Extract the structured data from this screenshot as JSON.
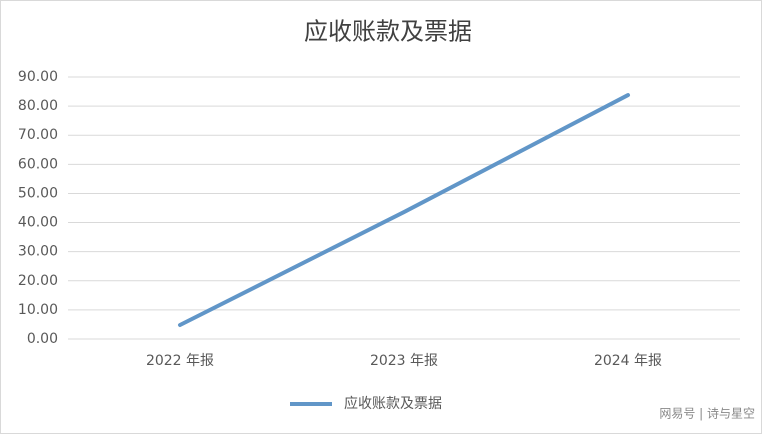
{
  "chart_data": {
    "type": "line",
    "title": "应收账款及票据",
    "categories": [
      "2022 年报",
      "2023 年报",
      "2024 年报"
    ],
    "series": [
      {
        "name": "应收账款及票据",
        "color": "#6196c8",
        "values": [
          4.8,
          43.6,
          83.8
        ]
      }
    ],
    "ylim": [
      0,
      90
    ],
    "yticks": [
      {
        "value": 0,
        "label": "0.00"
      },
      {
        "value": 10,
        "label": "10.00"
      },
      {
        "value": 20,
        "label": "20.00"
      },
      {
        "value": 30,
        "label": "30.00"
      },
      {
        "value": 40,
        "label": "40.00"
      },
      {
        "value": 50,
        "label": "50.00"
      },
      {
        "value": 60,
        "label": "60.00"
      },
      {
        "value": 70,
        "label": "70.00"
      },
      {
        "value": 80,
        "label": "80.00"
      },
      {
        "value": 90,
        "label": "90.00"
      }
    ],
    "grid": true,
    "legend": "bottom",
    "watermark": "网易号 | 诗与星空"
  }
}
